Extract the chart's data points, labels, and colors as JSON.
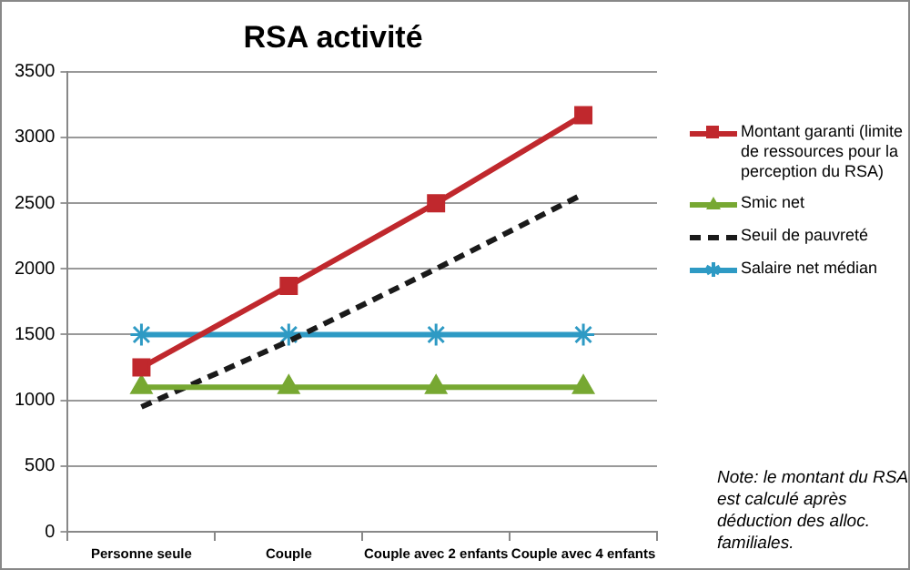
{
  "chart_data": {
    "type": "line",
    "title": "RSA activité",
    "categories": [
      "Personne seule",
      "Couple",
      "Couple avec 2 enfants",
      "Couple avec 4 enfants"
    ],
    "series": [
      {
        "name": "Montant garanti (limite de ressources pour la perception du RSA)",
        "color": "#c0282d",
        "marker": "square",
        "values": [
          1250,
          1870,
          2500,
          3170
        ]
      },
      {
        "name": "Smic net",
        "color": "#77a832",
        "marker": "triangle",
        "values": [
          1100,
          1100,
          1100,
          1100
        ]
      },
      {
        "name": "Seuil de pauvreté",
        "color": "#1a1a1a",
        "marker": "none",
        "line_style": "dashed",
        "values": [
          950,
          1450,
          2000,
          2570
        ]
      },
      {
        "name": "Salaire net médian",
        "color": "#2e9ac4",
        "marker": "cross",
        "values": [
          1500,
          1500,
          1500,
          1500
        ]
      }
    ],
    "ylim": [
      0,
      3500
    ],
    "yticks": [
      0,
      500,
      1000,
      1500,
      2000,
      2500,
      3000,
      3500
    ],
    "grid": "y",
    "legend": "right",
    "annotations": [
      "Note:  le montant du RSA est calculé après déduction des alloc. familiales."
    ]
  }
}
